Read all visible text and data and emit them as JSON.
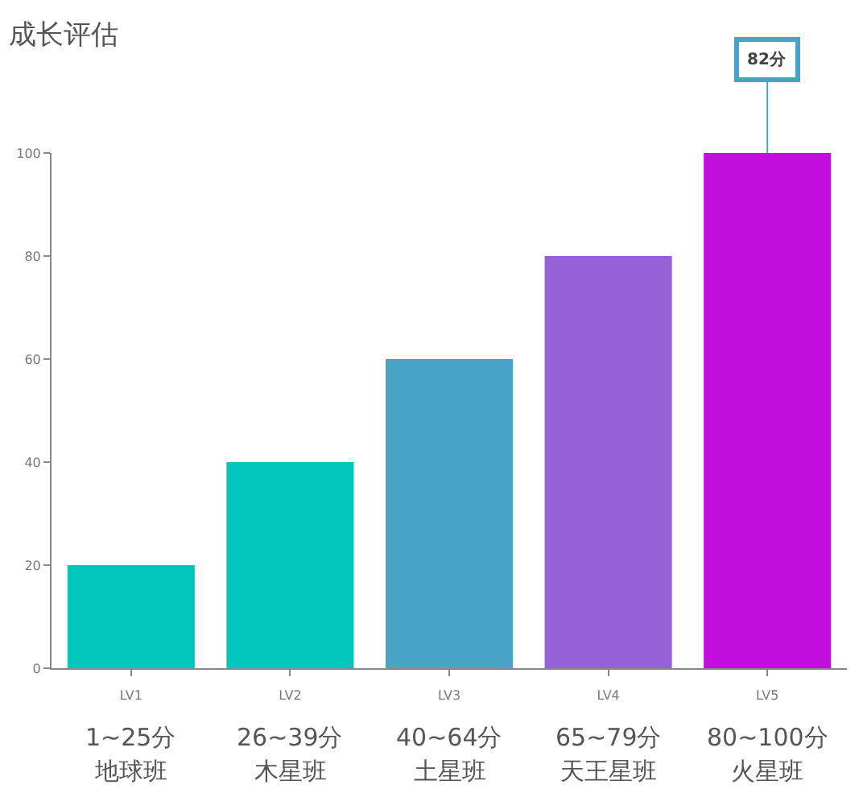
{
  "chart_data": {
    "type": "bar",
    "title": "成长评估",
    "categories": [
      "LV1\n1~25分地球班",
      "LV2\n26~39分木星班",
      "LV3\n40~64分土星班",
      "LV4\n65~79分天王星班",
      "LV5\n80~100分火星班"
    ],
    "values": [
      20,
      40,
      60,
      80,
      100
    ],
    "colors": [
      "#00c5bb",
      "#00c5bb",
      "#48a4c6",
      "#9462d6",
      "#c20fe0"
    ],
    "ylim": [
      0,
      100
    ],
    "yticks": [
      0,
      20,
      40,
      60,
      80,
      100
    ],
    "annotations": [
      {
        "text": "82分",
        "x": "LV5\n80~100分火星班",
        "y": 100
      }
    ]
  }
}
